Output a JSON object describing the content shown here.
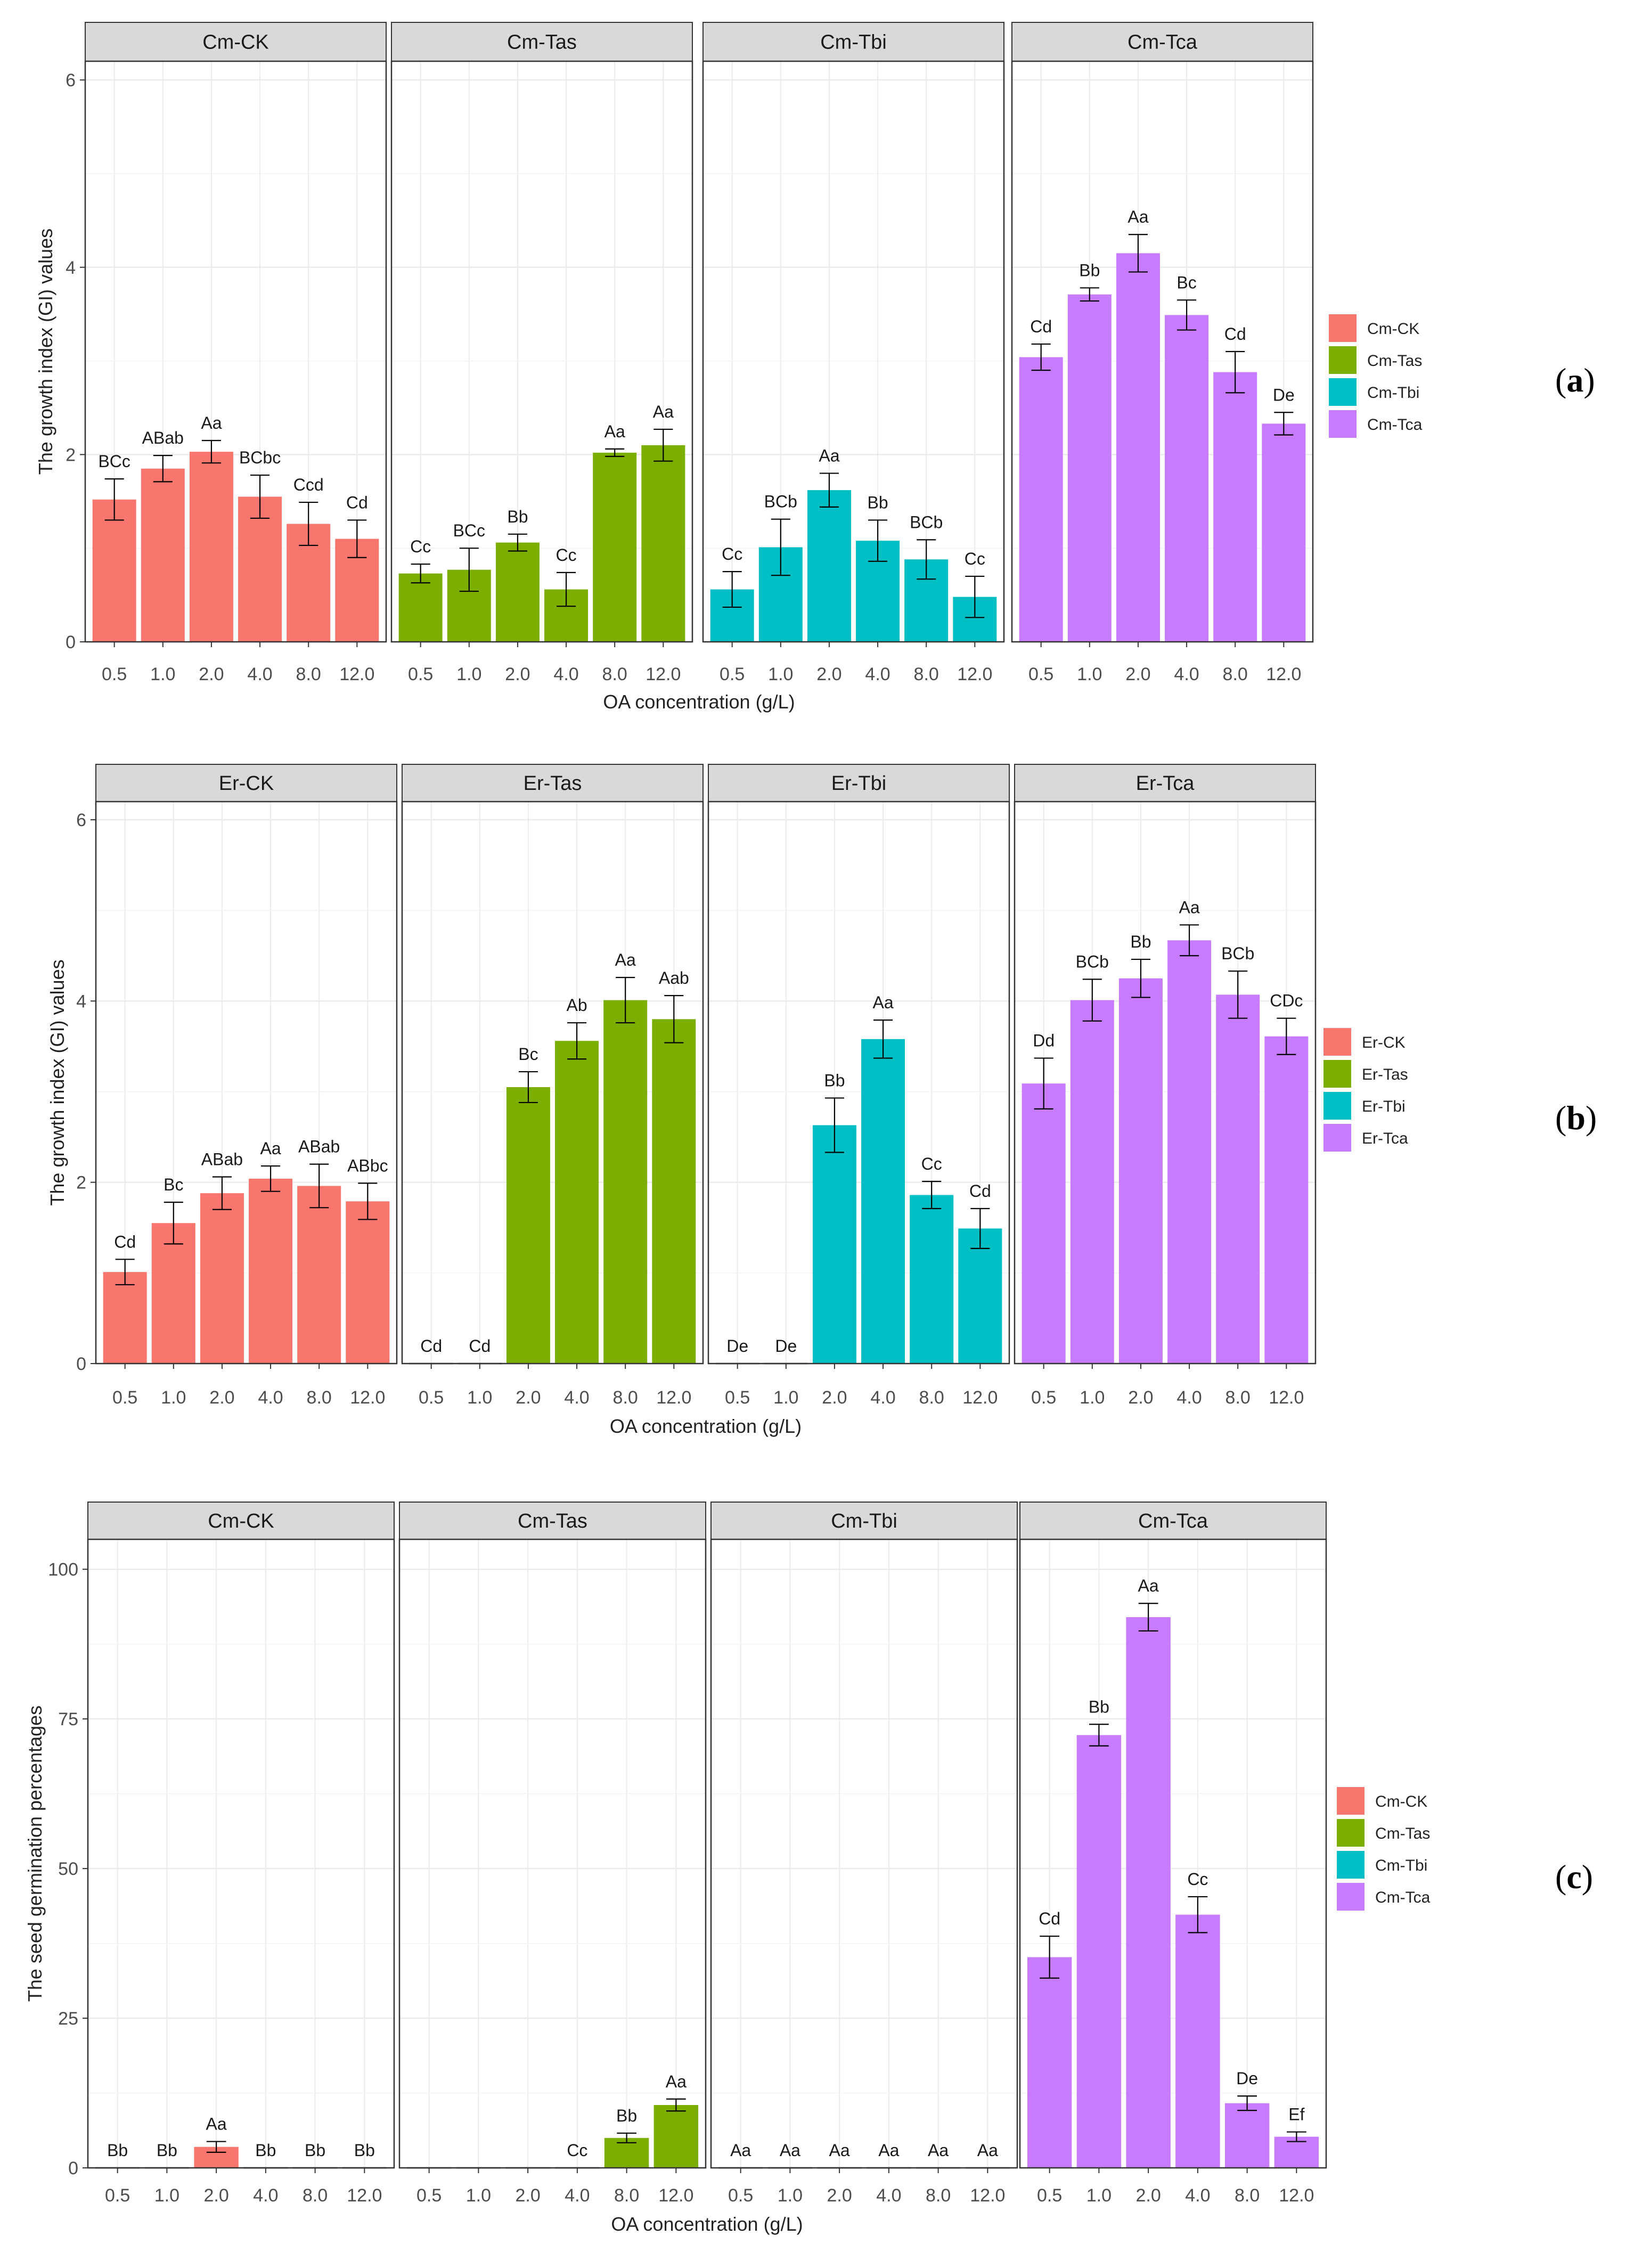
{
  "figure": {
    "colors": {
      "CK": "#F8766D",
      "Tas": "#7CAE00",
      "Tbi": "#00BFC4",
      "Tca": "#C77CFF",
      "strip": "#D9D9D9",
      "grid": "#EBEBEB",
      "panelBorder": "#333333"
    }
  },
  "chart_data": [
    {
      "type": "bar",
      "panel_tag": "a",
      "ylabel": "The growth index (GI) values",
      "xlabel": "OA concentration (g/L)",
      "ylim": [
        0,
        6.2
      ],
      "yticks": [
        0,
        2,
        4,
        6
      ],
      "categories": [
        "0.5",
        "1.0",
        "2.0",
        "4.0",
        "8.0",
        "12.0"
      ],
      "legend": [
        "Cm-CK",
        "Cm-Tas",
        "Cm-Tbi",
        "Cm-Tca"
      ],
      "facets": [
        {
          "name": "Cm-CK",
          "color_key": "CK",
          "values": [
            1.52,
            1.85,
            2.03,
            1.55,
            1.26,
            1.1
          ],
          "errors": [
            0.22,
            0.14,
            0.12,
            0.23,
            0.23,
            0.2
          ],
          "labels": [
            "BCc",
            "ABab",
            "Aa",
            "BCbc",
            "Ccd",
            "Cd"
          ]
        },
        {
          "name": "Cm-Tas",
          "color_key": "Tas",
          "values": [
            0.73,
            0.77,
            1.06,
            0.56,
            2.02,
            2.1
          ],
          "errors": [
            0.1,
            0.23,
            0.09,
            0.18,
            0.04,
            0.17
          ],
          "labels": [
            "Cc",
            "BCc",
            "Bb",
            "Cc",
            "Aa",
            "Aa"
          ]
        },
        {
          "name": "Cm-Tbi",
          "color_key": "Tbi",
          "values": [
            0.56,
            1.01,
            1.62,
            1.08,
            0.88,
            0.48
          ],
          "errors": [
            0.19,
            0.3,
            0.18,
            0.22,
            0.21,
            0.22
          ],
          "labels": [
            "Cc",
            "BCb",
            "Aa",
            "Bb",
            "BCb",
            "Cc"
          ]
        },
        {
          "name": "Cm-Tca",
          "color_key": "Tca",
          "values": [
            3.04,
            3.71,
            4.15,
            3.49,
            2.88,
            2.33
          ],
          "errors": [
            0.14,
            0.07,
            0.2,
            0.16,
            0.22,
            0.12
          ],
          "labels": [
            "Cd",
            "Bb",
            "Aa",
            "Bc",
            "Cd",
            "De"
          ]
        }
      ]
    },
    {
      "type": "bar",
      "panel_tag": "b",
      "ylabel": "The growth index (GI) values",
      "xlabel": "OA concentration (g/L)",
      "ylim": [
        0,
        6.2
      ],
      "yticks": [
        0,
        2,
        4,
        6
      ],
      "categories": [
        "0.5",
        "1.0",
        "2.0",
        "4.0",
        "8.0",
        "12.0"
      ],
      "legend": [
        "Er-CK",
        "Er-Tas",
        "Er-Tbi",
        "Er-Tca"
      ],
      "facets": [
        {
          "name": "Er-CK",
          "color_key": "CK",
          "values": [
            1.01,
            1.55,
            1.88,
            2.04,
            1.96,
            1.79
          ],
          "errors": [
            0.14,
            0.23,
            0.18,
            0.14,
            0.24,
            0.2
          ],
          "labels": [
            "Cd",
            "Bc",
            "ABab",
            "Aa",
            "ABab",
            "ABbc"
          ]
        },
        {
          "name": "Er-Tas",
          "color_key": "Tas",
          "values": [
            0,
            0,
            3.05,
            3.56,
            4.01,
            3.8
          ],
          "errors": [
            0,
            0,
            0.17,
            0.2,
            0.25,
            0.26
          ],
          "labels": [
            "Cd",
            "Cd",
            "Bc",
            "Ab",
            "Aa",
            "Aab"
          ]
        },
        {
          "name": "Er-Tbi",
          "color_key": "Tbi",
          "values": [
            0,
            0,
            2.63,
            3.58,
            1.86,
            1.49
          ],
          "errors": [
            0,
            0,
            0.3,
            0.21,
            0.15,
            0.22
          ],
          "labels": [
            "De",
            "De",
            "Bb",
            "Aa",
            "Cc",
            "Cd"
          ]
        },
        {
          "name": "Er-Tca",
          "color_key": "Tca",
          "values": [
            3.09,
            4.01,
            4.25,
            4.67,
            4.07,
            3.61
          ],
          "errors": [
            0.28,
            0.23,
            0.21,
            0.17,
            0.26,
            0.2
          ],
          "labels": [
            "Dd",
            "BCb",
            "Bb",
            "Aa",
            "BCb",
            "CDc"
          ]
        }
      ]
    },
    {
      "type": "bar",
      "panel_tag": "c",
      "ylabel": "The seed germination percentages",
      "xlabel": "OA concentration (g/L)",
      "ylim": [
        0,
        105
      ],
      "yticks": [
        0,
        25,
        50,
        75,
        100
      ],
      "categories": [
        "0.5",
        "1.0",
        "2.0",
        "4.0",
        "8.0",
        "12.0"
      ],
      "legend": [
        "Cm-CK",
        "Cm-Tas",
        "Cm-Tbi",
        "Cm-Tca"
      ],
      "facets": [
        {
          "name": "Cm-CK",
          "color_key": "CK",
          "values": [
            0,
            0,
            3.5,
            0,
            0,
            0
          ],
          "errors": [
            0,
            0,
            0.9,
            0,
            0,
            0
          ],
          "labels": [
            "Bb",
            "Bb",
            "Aa",
            "Bb",
            "Bb",
            "Bb"
          ]
        },
        {
          "name": "Cm-Tas",
          "color_key": "Tas",
          "values": [
            0,
            0,
            0,
            0,
            5.0,
            10.5
          ],
          "errors": [
            0,
            0,
            0,
            0,
            0.8,
            1.0
          ],
          "labels": [
            "",
            "",
            "",
            "Cc",
            "Bb",
            "Aa"
          ]
        },
        {
          "name": "Cm-Tbi",
          "color_key": "Tbi",
          "values": [
            0,
            0,
            0,
            0,
            0,
            0
          ],
          "errors": [
            0,
            0,
            0,
            0,
            0,
            0
          ],
          "labels": [
            "Aa",
            "Aa",
            "Aa",
            "Aa",
            "Aa",
            "Aa"
          ]
        },
        {
          "name": "Cm-Tca",
          "color_key": "Tca",
          "values": [
            35.2,
            72.3,
            92.0,
            42.3,
            10.8,
            5.2
          ],
          "errors": [
            3.5,
            1.8,
            2.3,
            3.0,
            1.2,
            0.8
          ],
          "labels": [
            "Cd",
            "Bb",
            "Aa",
            "Cc",
            "De",
            "Ef"
          ]
        }
      ]
    }
  ]
}
